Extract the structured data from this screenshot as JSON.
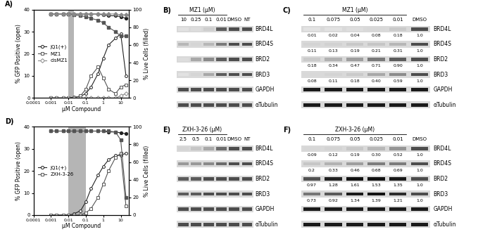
{
  "chart_data": [
    {
      "type": "line",
      "panel": "A)",
      "xlabel": "µM Compound",
      "ylabel": "% GFP Positive (open)",
      "y2label": "% Live Cells (filled)",
      "log": "x",
      "xlim": [
        0.0001,
        30
      ],
      "xticks": [
        0.0001,
        0.001,
        0.01,
        0.1,
        1,
        10
      ],
      "ylim": [
        0,
        40
      ],
      "yticks": [
        0,
        10,
        20,
        30,
        40
      ],
      "y2lim": [
        0,
        100
      ],
      "y2ticks": [
        0,
        20,
        40,
        60,
        80,
        100
      ],
      "shaded_range": [
        0.01,
        0.02
      ],
      "legend": "center left",
      "x": [
        0.001,
        0.002,
        0.005,
        0.01,
        0.02,
        0.05,
        0.1,
        0.2,
        0.5,
        1,
        2,
        5,
        10,
        20
      ],
      "series": [
        {
          "name": "JQ1(+)",
          "marker": "circle",
          "gfp": [
            0,
            0,
            0,
            0,
            0.3,
            0.8,
            2,
            5,
            11,
            18,
            24,
            27,
            29,
            10
          ],
          "live": [
            95,
            95,
            95,
            95,
            95,
            95,
            95,
            95,
            95,
            94,
            93,
            93,
            92,
            90
          ]
        },
        {
          "name": "MZ1",
          "marker": "square",
          "gfp": [
            0,
            0,
            0,
            0,
            0,
            1,
            4,
            10,
            14,
            9,
            4,
            2,
            5,
            6
          ],
          "live": [
            95,
            95,
            95,
            95,
            94,
            93,
            92,
            90,
            88,
            85,
            80,
            75,
            70,
            70
          ]
        },
        {
          "name": "cisMZ1",
          "marker": "diamond",
          "gfp": [
            0,
            0,
            0,
            0,
            0,
            0,
            0,
            0,
            0,
            0,
            0,
            0,
            1,
            2
          ],
          "live": [
            95,
            95,
            95,
            95,
            95,
            95,
            95,
            95,
            95,
            95,
            95,
            95,
            94,
            94
          ]
        }
      ]
    },
    {
      "type": "line",
      "panel": "D)",
      "xlabel": "µM Compound",
      "ylabel": "% GFP Positive (open)",
      "y2label": "% Live Cells (filled)",
      "log": "x",
      "xlim": [
        0.0001,
        30
      ],
      "xticks": [
        0.0001,
        0.001,
        0.01,
        0.1,
        1,
        10
      ],
      "ylim": [
        0,
        40
      ],
      "yticks": [
        0,
        10,
        20,
        30,
        40
      ],
      "y2lim": [
        0,
        100
      ],
      "y2ticks": [
        0,
        20,
        40,
        60,
        80,
        100
      ],
      "shaded_range": [
        0.01,
        0.1
      ],
      "legend": "center left",
      "x": [
        0.001,
        0.002,
        0.005,
        0.01,
        0.02,
        0.05,
        0.1,
        0.2,
        0.5,
        1,
        2,
        5,
        10,
        20
      ],
      "series": [
        {
          "name": "JQ1(+)",
          "marker": "circle",
          "gfp": [
            0,
            0,
            0,
            0,
            0.5,
            2,
            6,
            12,
            18,
            22,
            25,
            27,
            27,
            28
          ],
          "live": [
            95,
            95,
            95,
            95,
            95,
            95,
            95,
            95,
            95,
            95,
            94,
            94,
            93,
            92
          ]
        },
        {
          "name": "ZXH-3-26",
          "marker": "square",
          "gfp": [
            0,
            0,
            0,
            0,
            0,
            0,
            1,
            3,
            8,
            14,
            20,
            26,
            28,
            4
          ],
          "live": [
            95,
            95,
            95,
            95,
            95,
            95,
            95,
            95,
            95,
            95,
            95,
            94,
            85,
            20
          ]
        }
      ]
    }
  ],
  "blots": [
    {
      "panel": "B)",
      "header": "MZ1 (µM)",
      "doses": [
        "10",
        "0.25",
        "0.1",
        "0.01"
      ],
      "controls": [
        "DMSO",
        "NT"
      ],
      "rows": [
        {
          "name": "BRD4L",
          "intensity": [
            0.02,
            0.05,
            0.15,
            0.9,
            1,
            1
          ]
        },
        {
          "name": "BRD4S",
          "intensity": [
            0.3,
            0.1,
            0.3,
            0.7,
            1,
            1
          ]
        },
        {
          "name": "BRD2",
          "intensity": [
            0.05,
            0.4,
            0.6,
            0.9,
            1,
            1
          ]
        },
        {
          "name": "BRD3",
          "intensity": [
            0.02,
            0.1,
            0.4,
            0.9,
            1,
            1
          ]
        },
        {
          "name": "GAPDH",
          "intensity": [
            1,
            1,
            1,
            1,
            1,
            1
          ]
        },
        {
          "name": "αTubulin",
          "intensity": [
            1,
            1,
            1,
            1,
            1,
            1
          ]
        }
      ]
    },
    {
      "panel": "C)",
      "header": "MZ1 (µM)",
      "doses": [
        "0.1",
        "0.075",
        "0.05",
        "0.025",
        "0.01"
      ],
      "controls": [
        "DMSO"
      ],
      "rows": [
        {
          "name": "BRD4L",
          "values": [
            0.01,
            0.02,
            0.04,
            0.08,
            0.18,
            1.0
          ],
          "value_labels": [
            "0.01",
            "0.02",
            "0.04",
            "0.08",
            "0.18",
            "1.0"
          ]
        },
        {
          "name": "BRD4S",
          "values": [
            0.11,
            0.13,
            0.19,
            0.21,
            0.31,
            1.0
          ],
          "value_labels": [
            "0.11",
            "0.13",
            "0.19",
            "0.21",
            "0.31",
            "1.0"
          ]
        },
        {
          "name": "BRD2",
          "values": [
            0.18,
            0.34,
            0.47,
            0.71,
            0.9,
            1.0
          ],
          "value_labels": [
            "0.18",
            "0.34",
            "0.47",
            "0.71",
            "0.90",
            "1.0"
          ]
        },
        {
          "name": "BRD3",
          "values": [
            0.08,
            0.11,
            0.18,
            0.4,
            0.59,
            1.0
          ],
          "value_labels": [
            "0.08",
            "0.11",
            "0.18",
            "0.40",
            "0.59",
            "1.0"
          ]
        },
        {
          "name": "GAPDH"
        },
        {
          "name": "αTubulin"
        }
      ]
    },
    {
      "panel": "E)",
      "header": "ZXH-3-26 (µM)",
      "doses": [
        "2.5",
        "0.5",
        "0.1",
        "0.01"
      ],
      "controls": [
        "DMSO",
        "NT"
      ],
      "rows": [
        {
          "name": "BRD4L",
          "intensity": [
            0.1,
            0.2,
            0.4,
            0.8,
            1,
            1
          ]
        },
        {
          "name": "BRD4S",
          "intensity": [
            0.5,
            0.5,
            0.6,
            0.8,
            1,
            1
          ]
        },
        {
          "name": "BRD2",
          "intensity": [
            0.9,
            0.9,
            1,
            1,
            1,
            1
          ]
        },
        {
          "name": "BRD3",
          "intensity": [
            0.9,
            0.9,
            1,
            1,
            1,
            1
          ]
        },
        {
          "name": "GAPDH",
          "intensity": [
            1,
            1,
            1,
            1,
            1,
            1
          ]
        },
        {
          "name": "αTubulin",
          "intensity": [
            1,
            1,
            1,
            1,
            1,
            1
          ]
        }
      ]
    },
    {
      "panel": "F)",
      "header": "ZXH-3-26 (µM)",
      "doses": [
        "0.1",
        "0.075",
        "0.05",
        "0.025",
        "0.01"
      ],
      "controls": [
        "DMSO"
      ],
      "rows": [
        {
          "name": "BRD4L",
          "values": [
            0.09,
            0.12,
            0.19,
            0.3,
            0.52,
            1.0
          ],
          "value_labels": [
            "0.09",
            "0.12",
            "0.19",
            "0.30",
            "0.52",
            "1.0"
          ]
        },
        {
          "name": "BRD4S",
          "values": [
            0.2,
            0.33,
            0.46,
            0.68,
            0.69,
            1.0
          ],
          "value_labels": [
            "0.2",
            "0.33",
            "0.46",
            "0.68",
            "0.69",
            "1.0"
          ]
        },
        {
          "name": "BRD2",
          "values": [
            0.97,
            1.28,
            1.61,
            1.53,
            1.35,
            1.0
          ],
          "value_labels": [
            "0.97",
            "1.28",
            "1.61",
            "1.53",
            "1.35",
            "1.0"
          ]
        },
        {
          "name": "BRD3",
          "values": [
            0.73,
            0.92,
            1.34,
            1.39,
            1.21,
            1.0
          ],
          "value_labels": [
            "0.73",
            "0.92",
            "1.34",
            "1.39",
            "1.21",
            "1.0"
          ]
        },
        {
          "name": "GAPDH"
        },
        {
          "name": "αTubulin"
        }
      ]
    }
  ]
}
